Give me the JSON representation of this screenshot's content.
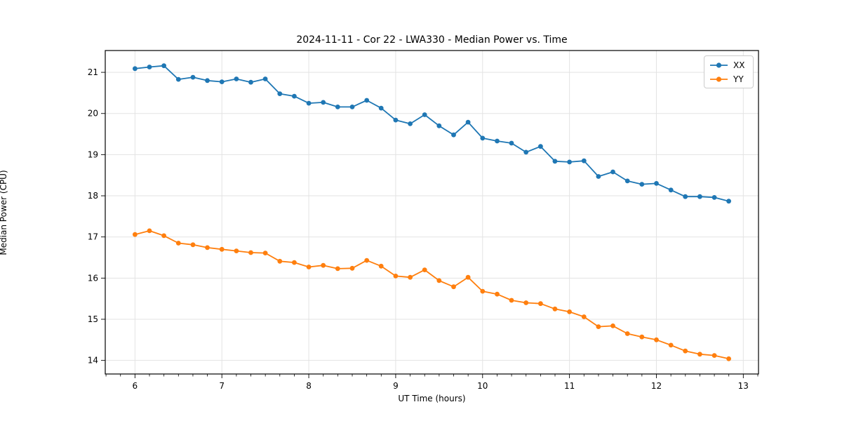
{
  "chart_data": {
    "type": "line",
    "title": "2024-11-11 - Cor 22 - LWA330 - Median Power vs. Time",
    "xlabel": "UT Time (hours)",
    "ylabel": "Median Power (CPU)",
    "xlim": [
      5.658,
      13.175
    ],
    "ylim": [
      13.67,
      21.53
    ],
    "xticks": [
      6,
      7,
      8,
      9,
      10,
      11,
      12,
      13
    ],
    "yticks": [
      14,
      15,
      16,
      17,
      18,
      19,
      20,
      21
    ],
    "x_minor_tick_step": 0.16667,
    "grid": true,
    "legend_position": "upper right",
    "marker": "circle",
    "x": [
      6.0,
      6.167,
      6.333,
      6.5,
      6.667,
      6.833,
      7.0,
      7.167,
      7.333,
      7.5,
      7.667,
      7.833,
      8.0,
      8.167,
      8.333,
      8.5,
      8.667,
      8.833,
      9.0,
      9.167,
      9.333,
      9.5,
      9.667,
      9.833,
      10.0,
      10.167,
      10.333,
      10.5,
      10.667,
      10.833,
      11.0,
      11.167,
      11.333,
      11.5,
      11.667,
      11.833,
      12.0,
      12.167,
      12.333,
      12.5,
      12.667,
      12.833
    ],
    "series": [
      {
        "name": "XX",
        "color": "#1f77b4",
        "values": [
          21.09,
          21.13,
          21.16,
          20.83,
          20.88,
          20.8,
          20.77,
          20.84,
          20.76,
          20.84,
          20.48,
          20.42,
          20.25,
          20.27,
          20.16,
          20.16,
          20.32,
          20.13,
          19.84,
          19.75,
          19.97,
          19.7,
          19.48,
          19.79,
          19.4,
          19.33,
          19.28,
          19.06,
          19.2,
          18.84,
          18.82,
          18.85,
          18.47,
          18.58,
          18.36,
          18.28,
          18.3,
          18.14,
          17.98,
          17.98,
          17.96,
          17.87
        ]
      },
      {
        "name": "YY",
        "color": "#ff7f0e",
        "values": [
          17.06,
          17.15,
          17.03,
          16.85,
          16.81,
          16.74,
          16.7,
          16.66,
          16.62,
          16.61,
          16.41,
          16.38,
          16.27,
          16.31,
          16.23,
          16.24,
          16.43,
          16.29,
          16.05,
          16.02,
          16.2,
          15.94,
          15.79,
          16.02,
          15.68,
          15.61,
          15.46,
          15.4,
          15.38,
          15.25,
          15.18,
          15.06,
          14.82,
          14.84,
          14.65,
          14.57,
          14.5,
          14.37,
          14.23,
          14.15,
          14.12,
          14.04
        ]
      }
    ],
    "colors": {
      "grid": "#e3e3e3",
      "spine": "#000000",
      "background": "#ffffff"
    }
  }
}
